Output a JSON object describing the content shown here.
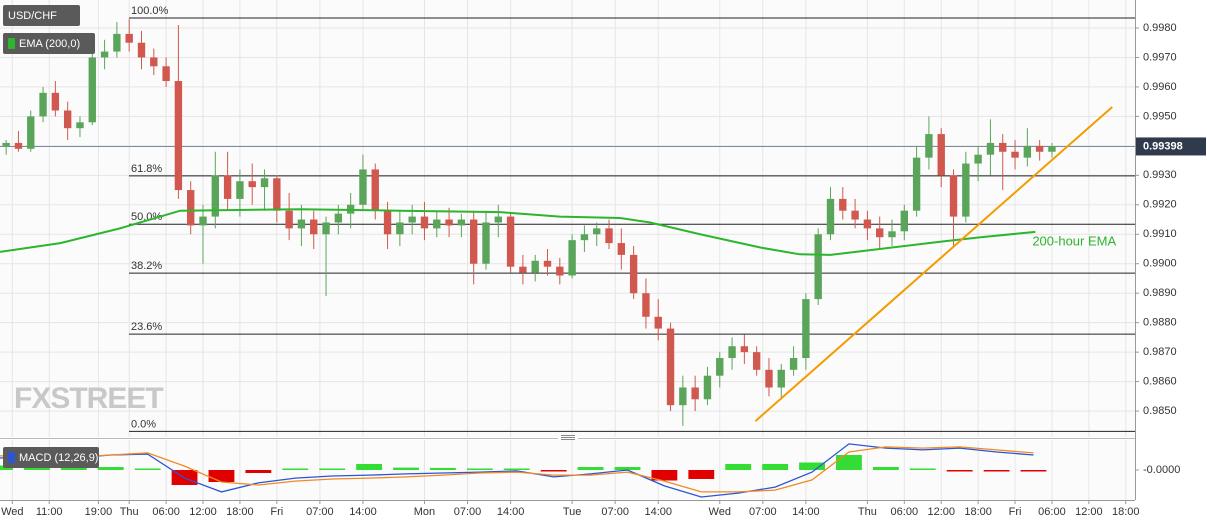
{
  "chart_data": {
    "type": "candlestick",
    "title": "USD/CHF",
    "watermark": "FXSTREET",
    "up_color": "#5ba55b",
    "down_color": "#d0584e",
    "grid": true,
    "xlim": [
      -2,
      182.5
    ],
    "xticks": [
      {
        "value": 0,
        "label": "Wed"
      },
      {
        "value": 6,
        "label": "11:00"
      },
      {
        "value": 14,
        "label": "19:00"
      },
      {
        "value": 19,
        "label": "Thu"
      },
      {
        "value": 25,
        "label": "06:00"
      },
      {
        "value": 31,
        "label": "12:00"
      },
      {
        "value": 37,
        "label": "18:00"
      },
      {
        "value": 43,
        "label": "Fri"
      },
      {
        "value": 50,
        "label": "07:00"
      },
      {
        "value": 57,
        "label": "14:00"
      },
      {
        "value": 67,
        "label": "Mon"
      },
      {
        "value": 74,
        "label": "07:00"
      },
      {
        "value": 81,
        "label": "14:00"
      },
      {
        "value": 91,
        "label": "Tue"
      },
      {
        "value": 98,
        "label": "07:00"
      },
      {
        "value": 105,
        "label": "14:00"
      },
      {
        "value": 115,
        "label": "Wed"
      },
      {
        "value": 122,
        "label": "07:00"
      },
      {
        "value": 129,
        "label": "14:00"
      },
      {
        "value": 139,
        "label": "Thu"
      },
      {
        "value": 145,
        "label": "06:00"
      },
      {
        "value": 151,
        "label": "12:00"
      },
      {
        "value": 157,
        "label": "18:00"
      },
      {
        "value": 163,
        "label": "Fri"
      },
      {
        "value": 169,
        "label": "06:00"
      },
      {
        "value": 175,
        "label": "12:00"
      },
      {
        "value": 181,
        "label": "18:00"
      }
    ],
    "ylim": [
      0.98412,
      0.99895
    ],
    "yticks": [
      {
        "value": 0.985,
        "label": "0.9850"
      },
      {
        "value": 0.986,
        "label": "0.9860"
      },
      {
        "value": 0.987,
        "label": "0.9870"
      },
      {
        "value": 0.988,
        "label": "0.9880"
      },
      {
        "value": 0.989,
        "label": "0.9890"
      },
      {
        "value": 0.99,
        "label": "0.9900"
      },
      {
        "value": 0.991,
        "label": "0.9910"
      },
      {
        "value": 0.992,
        "label": "0.9920"
      },
      {
        "value": 0.993,
        "label": "0.9930"
      },
      {
        "value": 0.994,
        "label": "0.9940"
      },
      {
        "value": 0.995,
        "label": "0.9950"
      },
      {
        "value": 0.996,
        "label": "0.9960"
      },
      {
        "value": 0.997,
        "label": "0.9970"
      },
      {
        "value": 0.998,
        "label": "0.9980"
      }
    ],
    "last_price": 0.99398,
    "x": [
      -1,
      1,
      3,
      5,
      7,
      9,
      11,
      13,
      15,
      17,
      19,
      21,
      23,
      25,
      27,
      29,
      31,
      33,
      35,
      37,
      39,
      41,
      43,
      45,
      47,
      49,
      51,
      53,
      55,
      57,
      59,
      61,
      63,
      65,
      67,
      69,
      71,
      73,
      75,
      77,
      79,
      81,
      83,
      85,
      87,
      89,
      91,
      93,
      95,
      97,
      99,
      101,
      103,
      105,
      107,
      109,
      111,
      113,
      115,
      117,
      119,
      121,
      123,
      125,
      127,
      129,
      131,
      133,
      135,
      137,
      139,
      141,
      143,
      145,
      147,
      149,
      151,
      153,
      155,
      157,
      159,
      161,
      163,
      165,
      167,
      169
    ],
    "open": [
      0.994,
      0.9941,
      0.9939,
      0.995,
      0.9958,
      0.9952,
      0.9946,
      0.9948,
      0.997,
      0.9972,
      0.9978,
      0.9975,
      0.997,
      0.9967,
      0.9962,
      0.9925,
      0.9913,
      0.9916,
      0.993,
      0.9922,
      0.9928,
      0.9926,
      0.9929,
      0.9918,
      0.9912,
      0.9915,
      0.991,
      0.9914,
      0.9917,
      0.992,
      0.9932,
      0.9918,
      0.991,
      0.9914,
      0.9916,
      0.9912,
      0.9915,
      0.9913,
      0.9915,
      0.99,
      0.9914,
      0.9916,
      0.9899,
      0.9897,
      0.9901,
      0.9899,
      0.9896,
      0.9908,
      0.991,
      0.9912,
      0.9907,
      0.9903,
      0.989,
      0.9882,
      0.9878,
      0.9852,
      0.9858,
      0.9854,
      0.9862,
      0.9868,
      0.9872,
      0.987,
      0.9864,
      0.9858,
      0.9864,
      0.9868,
      0.9888,
      0.991,
      0.9922,
      0.9918,
      0.9915,
      0.9912,
      0.9909,
      0.9911,
      0.9918,
      0.9936,
      0.9944,
      0.993,
      0.9916,
      0.9934,
      0.9937,
      0.9941,
      0.9938,
      0.9936,
      0.994,
      0.9938
    ],
    "high": [
      0.9942,
      0.9945,
      0.9952,
      0.996,
      0.9962,
      0.9955,
      0.995,
      0.9972,
      0.9976,
      0.9982,
      0.9983,
      0.9979,
      0.9973,
      0.997,
      0.9981,
      0.9928,
      0.992,
      0.9938,
      0.9938,
      0.9932,
      0.9934,
      0.9932,
      0.993,
      0.9924,
      0.992,
      0.9918,
      0.9916,
      0.992,
      0.9924,
      0.9937,
      0.9934,
      0.9921,
      0.9918,
      0.992,
      0.9921,
      0.9918,
      0.9919,
      0.9917,
      0.9918,
      0.9918,
      0.992,
      0.9917,
      0.9903,
      0.9903,
      0.9905,
      0.9902,
      0.991,
      0.9913,
      0.9914,
      0.9915,
      0.9912,
      0.9906,
      0.9895,
      0.9888,
      0.988,
      0.9862,
      0.9862,
      0.9865,
      0.987,
      0.9875,
      0.9876,
      0.9872,
      0.9868,
      0.9866,
      0.9872,
      0.989,
      0.9912,
      0.9926,
      0.9926,
      0.9922,
      0.9918,
      0.9916,
      0.9915,
      0.992,
      0.994,
      0.995,
      0.9946,
      0.9932,
      0.9938,
      0.994,
      0.9949,
      0.9944,
      0.9942,
      0.9946,
      0.9942,
      0.9941
    ],
    "low": [
      0.9937,
      0.9938,
      0.9938,
      0.9948,
      0.995,
      0.9942,
      0.9943,
      0.9947,
      0.9966,
      0.997,
      0.9972,
      0.9966,
      0.9964,
      0.996,
      0.9922,
      0.991,
      0.99,
      0.9912,
      0.9918,
      0.9916,
      0.992,
      0.9918,
      0.9914,
      0.9908,
      0.9906,
      0.9905,
      0.9889,
      0.991,
      0.9912,
      0.9918,
      0.9915,
      0.9905,
      0.9906,
      0.991,
      0.9908,
      0.9909,
      0.9909,
      0.9909,
      0.9893,
      0.9898,
      0.9909,
      0.9897,
      0.9893,
      0.9894,
      0.9896,
      0.9893,
      0.9895,
      0.9904,
      0.9906,
      0.9905,
      0.9898,
      0.9888,
      0.9878,
      0.9874,
      0.985,
      0.9845,
      0.985,
      0.9852,
      0.9858,
      0.9864,
      0.9866,
      0.9862,
      0.9855,
      0.9854,
      0.9862,
      0.9864,
      0.9886,
      0.9908,
      0.9915,
      0.9912,
      0.9908,
      0.9905,
      0.9906,
      0.9908,
      0.9916,
      0.9932,
      0.9926,
      0.9906,
      0.9914,
      0.9928,
      0.993,
      0.9925,
      0.9932,
      0.9933,
      0.9935,
      0.9936
    ],
    "close": [
      0.9941,
      0.9939,
      0.995,
      0.9958,
      0.9952,
      0.9946,
      0.9948,
      0.997,
      0.9972,
      0.9978,
      0.9975,
      0.997,
      0.9967,
      0.9962,
      0.9925,
      0.9913,
      0.9916,
      0.993,
      0.9922,
      0.9928,
      0.9926,
      0.9929,
      0.9918,
      0.9912,
      0.9915,
      0.991,
      0.9914,
      0.9917,
      0.992,
      0.9932,
      0.9918,
      0.991,
      0.9914,
      0.9916,
      0.9912,
      0.9915,
      0.9913,
      0.9915,
      0.99,
      0.9914,
      0.9916,
      0.9899,
      0.9897,
      0.9901,
      0.9899,
      0.9896,
      0.9908,
      0.991,
      0.9912,
      0.9907,
      0.9903,
      0.989,
      0.9882,
      0.9878,
      0.9852,
      0.9858,
      0.9854,
      0.9862,
      0.9868,
      0.9872,
      0.987,
      0.9864,
      0.9858,
      0.9864,
      0.9868,
      0.9888,
      0.991,
      0.9922,
      0.9918,
      0.9915,
      0.9912,
      0.9909,
      0.9911,
      0.9918,
      0.9936,
      0.9944,
      0.993,
      0.9916,
      0.9934,
      0.9937,
      0.9941,
      0.9938,
      0.9936,
      0.994,
      0.9938,
      0.99398
    ],
    "ema": {
      "name": "EMA (200,0)",
      "annotation": "200-hour EMA",
      "color": "#2db52d",
      "x": [
        -2,
        7.8,
        17.5,
        27.3,
        46.8,
        63,
        79.3,
        89,
        98.8,
        103.7,
        111.8,
        121.6,
        128,
        133,
        141,
        151,
        157.4,
        166.3
      ],
      "values": [
        0.9904,
        0.9907,
        0.9912,
        0.9918,
        0.99185,
        0.9918,
        0.99175,
        0.9916,
        0.99155,
        0.9914,
        0.991,
        0.99055,
        0.99032,
        0.9903,
        0.9905,
        0.99075,
        0.9909,
        0.99108
      ]
    },
    "fibonacci": [
      {
        "value": 0.99834,
        "label": "100.0%"
      },
      {
        "value": 0.99298,
        "label": "61.8%"
      },
      {
        "value": 0.99134,
        "label": "50.0%"
      },
      {
        "value": 0.98968,
        "label": "38.2%"
      },
      {
        "value": 0.98761,
        "label": "23.6%"
      },
      {
        "value": 0.98431,
        "label": "0.0%"
      }
    ],
    "trendline": {
      "color": "#f59b00",
      "x": [
        120.8,
        178.8
      ],
      "values": [
        0.98466,
        0.99532
      ]
    },
    "macd": {
      "name": "MACD (12,26,9)",
      "macd_color": "#2c55d6",
      "signal_color": "#f08a24",
      "positive_color": "#33dd33",
      "negative_color": "#e00000",
      "ylim": [
        -0.001,
        0.001
      ],
      "yticks": [
        {
          "value": 0,
          "label": "-0.0000"
        }
      ],
      "x": [
        -2,
        4,
        10,
        16,
        22,
        28,
        34,
        40,
        46,
        52,
        58,
        64,
        70,
        76,
        82,
        88,
        94,
        100,
        106,
        112,
        118,
        124,
        130,
        136,
        142,
        148,
        154,
        160,
        166
      ],
      "macd": [
        0.0004,
        0.00043,
        0.0004,
        0.0005,
        0.00053,
        -0.00027,
        -0.00073,
        -0.00043,
        -0.00027,
        -0.0002,
        -0.00017,
        -0.00013,
        -0.0001,
        -7e-05,
        -3e-05,
        -0.00023,
        -0.00013,
        0,
        -0.00053,
        -0.0009,
        -0.00077,
        -0.00057,
        -7e-05,
        0.00087,
        0.00073,
        0.00067,
        0.00073,
        0.0006,
        0.0005
      ],
      "signal": [
        0.00047,
        0.00047,
        0.00043,
        0.0005,
        0.00057,
        0.00013,
        -0.0004,
        -0.0005,
        -0.00037,
        -0.0003,
        -0.00027,
        -0.00023,
        -0.00017,
        -0.0001,
        -7e-05,
        -0.00017,
        -0.00017,
        -7e-05,
        -0.00037,
        -0.00073,
        -0.00073,
        -0.00067,
        -0.00033,
        0.0006,
        0.00077,
        0.00073,
        0.00077,
        0.00067,
        0.00057
      ],
      "histogram": [
        0.00015,
        0.00012,
        0.0001,
        0.0001,
        5e-05,
        -0.0005,
        -0.0004,
        -0.0001,
        5e-05,
        5e-05,
        0.0002,
        8e-05,
        7e-05,
        5e-05,
        5e-05,
        -5e-05,
        0.0001,
        0.0001,
        -0.00035,
        -0.0003,
        0.0002,
        0.0002,
        0.00025,
        0.0005,
        0.0001,
        5e-05,
        -5e-05,
        -5e-05,
        -5e-05
      ]
    }
  }
}
